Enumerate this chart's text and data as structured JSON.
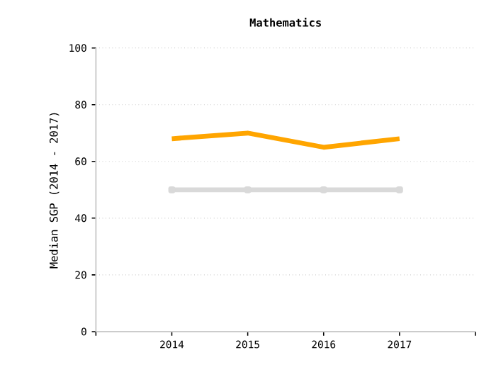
{
  "chart_data": {
    "type": "line",
    "title": "Mathematics",
    "ylabel": "Median SGP (2014 - 2017)",
    "categories": [
      "2014",
      "2015",
      "2016",
      "2017"
    ],
    "series": [
      {
        "color": "#ffa500",
        "values": [
          68,
          70,
          65,
          68
        ]
      },
      {
        "color": "#d9d9d9",
        "values": [
          50,
          50,
          50,
          50
        ],
        "marker": "square"
      }
    ],
    "ylim": [
      0,
      100
    ],
    "yticks": [
      0,
      20,
      40,
      60,
      80,
      100
    ],
    "grid": "y"
  }
}
